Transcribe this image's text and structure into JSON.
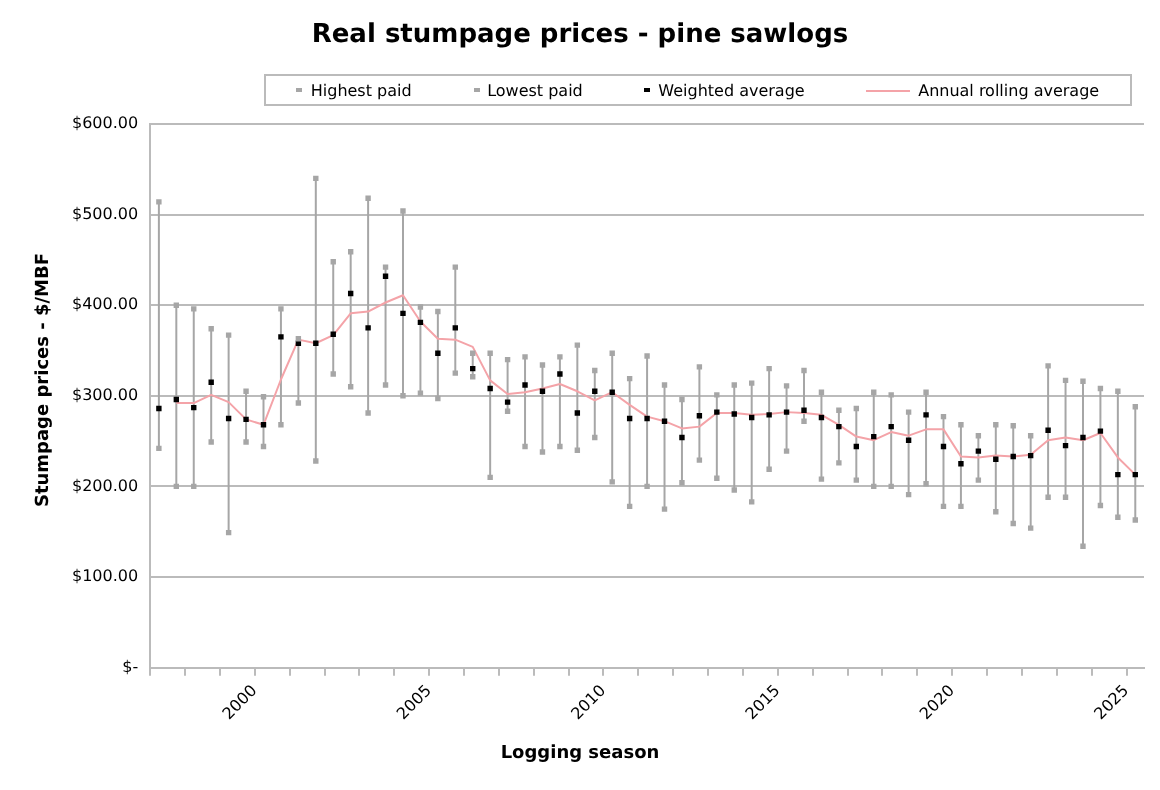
{
  "chart_data": {
    "type": "scatter",
    "title": "Real stumpage prices - pine sawlogs",
    "xlabel": "Logging season",
    "ylabel": "Stumpage prices - $/MBF",
    "x": [
      1997.25,
      1997.75,
      1998.25,
      1998.75,
      1999.25,
      1999.75,
      2000.25,
      2000.75,
      2001.25,
      2001.75,
      2002.25,
      2002.75,
      2003.25,
      2003.75,
      2004.25,
      2004.75,
      2005.25,
      2005.75,
      2006.25,
      2006.75,
      2007.25,
      2007.75,
      2008.25,
      2008.75,
      2009.25,
      2009.75,
      2010.25,
      2010.75,
      2011.25,
      2011.75,
      2012.25,
      2012.75,
      2013.25,
      2013.75,
      2014.25,
      2014.75,
      2015.25,
      2015.75,
      2016.25,
      2016.75,
      2017.25,
      2017.75,
      2018.25,
      2018.75,
      2019.25,
      2019.75,
      2020.25,
      2020.75,
      2021.25,
      2021.75,
      2022.25,
      2022.75,
      2023.25,
      2023.75,
      2024.25,
      2024.75,
      2025.25
    ],
    "series": [
      {
        "name": "Highest paid",
        "marker": "square",
        "color": "#a6a6a6",
        "values": [
          514,
          400,
          396,
          374,
          367,
          305,
          299,
          396,
          363,
          540,
          448,
          459,
          518,
          442,
          504,
          398,
          393,
          442,
          347,
          347,
          340,
          343,
          334,
          343,
          356,
          328,
          347,
          319,
          344,
          312,
          296,
          332,
          301,
          312,
          314,
          330,
          311,
          328,
          304,
          284,
          286,
          304,
          301,
          282,
          304,
          277,
          268,
          256,
          268,
          267,
          256,
          333,
          317,
          316,
          308,
          305,
          288
        ]
      },
      {
        "name": "Lowest paid",
        "marker": "square",
        "color": "#a6a6a6",
        "values": [
          242,
          200,
          200,
          249,
          149,
          249,
          244,
          268,
          292,
          228,
          324,
          310,
          281,
          312,
          300,
          303,
          297,
          325,
          321,
          210,
          283,
          244,
          238,
          244,
          240,
          254,
          205,
          178,
          200,
          175,
          204,
          229,
          209,
          196,
          183,
          219,
          239,
          272,
          208,
          226,
          207,
          200,
          200,
          191,
          203,
          178,
          178,
          207,
          172,
          159,
          154,
          188,
          188,
          134,
          179,
          166,
          163
        ]
      },
      {
        "name": "Weighted average",
        "marker": "square",
        "color": "#000000",
        "values": [
          286,
          296,
          287,
          315,
          275,
          274,
          268,
          365,
          358,
          358,
          368,
          413,
          375,
          432,
          391,
          381,
          347,
          375,
          330,
          308,
          293,
          312,
          305,
          324,
          281,
          305,
          304,
          275,
          275,
          272,
          254,
          278,
          282,
          280,
          276,
          279,
          282,
          284,
          276,
          266,
          244,
          255,
          266,
          251,
          279,
          244,
          225,
          239,
          230,
          233,
          234,
          262,
          245,
          254,
          261,
          213,
          213
        ],
        "errors": [
          [
            242,
            514
          ],
          [
            200,
            400
          ],
          [
            200,
            396
          ],
          [
            249,
            374
          ],
          [
            149,
            367
          ],
          [
            249,
            305
          ],
          [
            244,
            299
          ],
          [
            268,
            396
          ],
          [
            292,
            363
          ],
          [
            228,
            540
          ],
          [
            324,
            448
          ],
          [
            310,
            459
          ],
          [
            281,
            518
          ],
          [
            312,
            442
          ],
          [
            300,
            504
          ],
          [
            303,
            398
          ],
          [
            297,
            393
          ],
          [
            325,
            442
          ],
          [
            321,
            347
          ],
          [
            210,
            347
          ],
          [
            283,
            340
          ],
          [
            244,
            343
          ],
          [
            238,
            334
          ],
          [
            244,
            343
          ],
          [
            240,
            356
          ],
          [
            254,
            328
          ],
          [
            205,
            347
          ],
          [
            178,
            319
          ],
          [
            200,
            344
          ],
          [
            175,
            312
          ],
          [
            204,
            296
          ],
          [
            229,
            332
          ],
          [
            209,
            301
          ],
          [
            196,
            312
          ],
          [
            183,
            314
          ],
          [
            219,
            330
          ],
          [
            239,
            311
          ],
          [
            272,
            328
          ],
          [
            208,
            304
          ],
          [
            226,
            284
          ],
          [
            207,
            286
          ],
          [
            200,
            304
          ],
          [
            200,
            301
          ],
          [
            191,
            282
          ],
          [
            203,
            304
          ],
          [
            178,
            277
          ],
          [
            178,
            268
          ],
          [
            207,
            256
          ],
          [
            172,
            268
          ],
          [
            159,
            267
          ],
          [
            154,
            256
          ],
          [
            188,
            333
          ],
          [
            188,
            317
          ],
          [
            134,
            316
          ],
          [
            179,
            308
          ],
          [
            166,
            305
          ],
          [
            163,
            288
          ]
        ]
      },
      {
        "name": "Annual rolling average",
        "type": "line",
        "marker": "none",
        "color": "#f4a3a8",
        "values": [
          null,
          292,
          292,
          301,
          293,
          274,
          268,
          318,
          362,
          358,
          367,
          391,
          393,
          403,
          411,
          382,
          363,
          362,
          354,
          317,
          302,
          304,
          308,
          313,
          305,
          295,
          304,
          290,
          277,
          272,
          264,
          266,
          281,
          281,
          279,
          280,
          282,
          281,
          279,
          268,
          255,
          251,
          260,
          256,
          263,
          263,
          233,
          232,
          234,
          233,
          235,
          251,
          254,
          251,
          259,
          232,
          213
        ]
      }
    ],
    "xlim": [
      1997,
      2025.5
    ],
    "xticks": [
      {
        "value": 1997,
        "label": null
      },
      {
        "value": 1998,
        "label": null
      },
      {
        "value": 1999,
        "label": null
      },
      2000,
      {
        "value": 2001,
        "label": null
      },
      {
        "value": 2002,
        "label": null
      },
      {
        "value": 2003,
        "label": null
      },
      {
        "value": 2004,
        "label": null
      },
      2005,
      {
        "value": 2006,
        "label": null
      },
      {
        "value": 2007,
        "label": null
      },
      {
        "value": 2008,
        "label": null
      },
      {
        "value": 2009,
        "label": null
      },
      2010,
      {
        "value": 2011,
        "label": null
      },
      {
        "value": 2012,
        "label": null
      },
      {
        "value": 2013,
        "label": null
      },
      {
        "value": 2014,
        "label": null
      },
      2015,
      {
        "value": 2016,
        "label": null
      },
      {
        "value": 2017,
        "label": null
      },
      {
        "value": 2018,
        "label": null
      },
      {
        "value": 2019,
        "label": null
      },
      2020,
      {
        "value": 2021,
        "label": null
      },
      {
        "value": 2022,
        "label": null
      },
      {
        "value": 2023,
        "label": null
      },
      {
        "value": 2024,
        "label": null
      },
      2025
    ],
    "ylim": [
      0,
      600
    ],
    "yticks": [
      {
        "value": 0,
        "label": "$-"
      },
      {
        "value": 100,
        "label": "$100.00"
      },
      {
        "value": 200,
        "label": "$200.00"
      },
      {
        "value": 300,
        "label": "$300.00"
      },
      {
        "value": 400,
        "label": "$400.00"
      },
      {
        "value": 500,
        "label": "$500.00"
      },
      {
        "value": 600,
        "label": "$600.00"
      }
    ],
    "grid": "y",
    "legend": "top"
  }
}
